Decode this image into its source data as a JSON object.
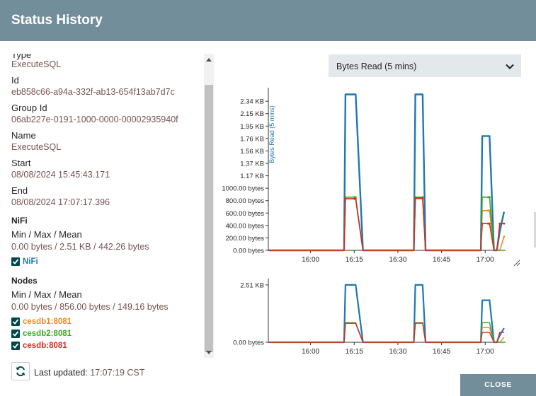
{
  "dialog": {
    "title": "Status History",
    "close_label": "CLOSE",
    "last_updated_label": "Last updated:",
    "last_updated_value": "17:07:19 CST"
  },
  "details": {
    "partial_label": "Type",
    "type_value": "ExecuteSQL",
    "id_label": "Id",
    "id_value": "eb858c66-a94a-332f-ab13-654f13ab7d7c",
    "group_id_label": "Group Id",
    "group_id_value": "06ab227e-0191-1000-0000-00002935940f",
    "name_label": "Name",
    "name_value": "ExecuteSQL",
    "start_label": "Start",
    "start_value": "08/08/2024 15:45:43.171",
    "end_label": "End",
    "end_value": "08/08/2024 17:07:17.396",
    "nifi_section": "NiFi",
    "nifi_mmm_label": "Min / Max / Mean",
    "nifi_mmm_value": "0.00 bytes / 2.51 KB / 442.26 bytes",
    "nifi_checkbox": "NiFi",
    "nodes_section": "Nodes",
    "nodes_mmm_label": "Min / Max / Mean",
    "nodes_mmm_value": "0.00 bytes / 856.00 bytes / 149.16 bytes",
    "nodes": [
      {
        "label": "cesdb1:8081",
        "color": "#f28b15"
      },
      {
        "label": "cesdb2:8081",
        "color": "#3da826"
      },
      {
        "label": "cesdb:8081",
        "color": "#d62d20"
      }
    ]
  },
  "metric_select": {
    "value": "Bytes Read (5 mins)"
  },
  "colors": {
    "header": "#728e9b",
    "nifi": "#1f77b4",
    "value_text": "#775351"
  },
  "chart_data": [
    {
      "type": "line",
      "ylabel": "Bytes Read (5 mins)",
      "y_ticks": [
        "0.00 bytes",
        "200.00 bytes",
        "400.00 bytes",
        "600.00 bytes",
        "800.00 bytes",
        "1000.00 bytes",
        "1.17 KB",
        "1.37 KB",
        "1.56 KB",
        "1.76 KB",
        "1.95 KB",
        "2.15 KB",
        "2.34 KB"
      ],
      "y_tick_values": [
        0,
        200,
        400,
        600,
        800,
        1000,
        1200,
        1400,
        1600,
        1800,
        2000,
        2200,
        2400
      ],
      "ylim": [
        0,
        2550
      ],
      "x_ticks": [
        "16:00",
        "16:15",
        "16:30",
        "16:45",
        "17:00"
      ],
      "x_tick_values": [
        960,
        975,
        990,
        1005,
        1020
      ],
      "xlim": [
        945.5,
        1027
      ],
      "series": [
        {
          "name": "NiFi",
          "color": "#1f77b4",
          "x": [
            945.5,
            969,
            971.5,
            972,
            975,
            975.5,
            978,
            979.5,
            993,
            995.5,
            996,
            998.5,
            999.5,
            1002,
            1003.5,
            1017,
            1018.5,
            1019,
            1021,
            1021.5,
            1023,
            1024,
            1025,
            1026.5
          ],
          "y": [
            0,
            0,
            0,
            2510,
            2510,
            2510,
            0,
            0,
            0,
            0,
            2510,
            2510,
            0,
            0,
            0,
            0,
            0,
            1840,
            1840,
            1840,
            0,
            0,
            300,
            620
          ]
        },
        {
          "name": "cesdb1:8081",
          "color": "#f28b15",
          "x": [
            945.5,
            969,
            971.5,
            972,
            975,
            975.5,
            978,
            979.5,
            993,
            995.5,
            996,
            998.5,
            999.5,
            1002,
            1003.5,
            1017,
            1018.5,
            1019,
            1021,
            1021.5,
            1023,
            1024,
            1025,
            1026.5
          ],
          "y": [
            0,
            0,
            0,
            830,
            830,
            830,
            0,
            0,
            0,
            0,
            830,
            830,
            0,
            0,
            0,
            0,
            0,
            640,
            640,
            640,
            0,
            0,
            0,
            220
          ]
        },
        {
          "name": "cesdb2:8081",
          "color": "#3da826",
          "x": [
            945.5,
            969,
            971.5,
            972,
            975,
            975.5,
            978,
            979.5,
            993,
            995.5,
            996,
            998.5,
            999.5,
            1002,
            1003.5,
            1017,
            1018.5,
            1019,
            1021,
            1021.5,
            1023,
            1024,
            1025,
            1026.5
          ],
          "y": [
            0,
            0,
            0,
            856,
            856,
            856,
            0,
            0,
            0,
            0,
            856,
            856,
            0,
            0,
            0,
            0,
            0,
            856,
            856,
            856,
            0,
            0,
            0,
            0
          ]
        },
        {
          "name": "cesdb:8081",
          "color": "#d62d20",
          "x": [
            945.5,
            969,
            971.5,
            972,
            975,
            975.5,
            978,
            979.5,
            993,
            995.5,
            996,
            998.5,
            999.5,
            1002,
            1003.5,
            1017,
            1018.5,
            1019,
            1021,
            1021.5,
            1023,
            1024,
            1025,
            1026.5
          ],
          "y": [
            0,
            0,
            0,
            830,
            830,
            830,
            0,
            0,
            0,
            0,
            840,
            840,
            0,
            0,
            0,
            0,
            0,
            430,
            430,
            430,
            0,
            0,
            430,
            430
          ]
        }
      ]
    },
    {
      "type": "line",
      "y_ticks": [
        "0.00 bytes",
        "2.51 KB"
      ],
      "y_tick_values": [
        0,
        2510
      ],
      "ylim": [
        0,
        2600
      ],
      "x_ticks": [
        "16:00",
        "16:15",
        "16:30",
        "16:45",
        "17:00"
      ],
      "x_tick_values": [
        960,
        975,
        990,
        1005,
        1020
      ],
      "xlim": [
        945.5,
        1027
      ],
      "series_ref": 0
    }
  ]
}
